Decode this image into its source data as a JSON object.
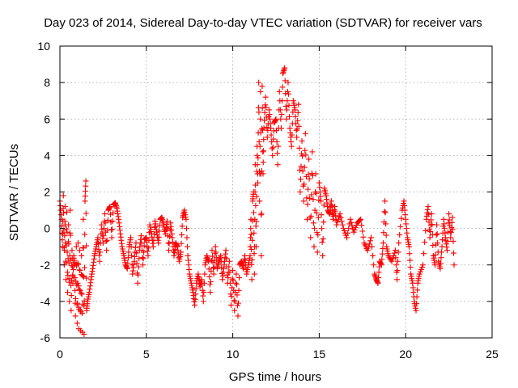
{
  "chart_data": {
    "type": "scatter",
    "title": "Day 023 of 2014, Sidereal Day-to-day VTEC variation (SDTVAR) for receiver vars",
    "xlabel": "GPS time / hours",
    "ylabel": "SDTVAR / TECUs",
    "xlim": [
      0,
      25
    ],
    "ylim": [
      -6,
      10
    ],
    "xticks": [
      0,
      5,
      10,
      15,
      20,
      25
    ],
    "yticks": [
      -6,
      -4,
      -2,
      0,
      2,
      4,
      6,
      8,
      10
    ],
    "grid": true,
    "marker": "+",
    "color": "#ff0000",
    "series": [
      {
        "name": "SDTVAR",
        "points": [
          [
            0.0,
            1.5
          ],
          [
            0.1,
            0.5
          ],
          [
            0.15,
            -1.0
          ],
          [
            0.2,
            1.8
          ],
          [
            0.25,
            -2.0
          ],
          [
            0.3,
            1.2
          ],
          [
            0.35,
            -2.8
          ],
          [
            0.4,
            0.9
          ],
          [
            0.45,
            -3.5
          ],
          [
            0.5,
            0.2
          ],
          [
            0.55,
            -4.0
          ],
          [
            0.6,
            1.0
          ],
          [
            0.65,
            -4.5
          ],
          [
            0.7,
            -1.2
          ],
          [
            0.75,
            -3.0
          ],
          [
            0.8,
            -1.5
          ],
          [
            0.85,
            -2.0
          ],
          [
            0.9,
            -4.8
          ],
          [
            0.95,
            -1.0
          ],
          [
            1.0,
            -5.2
          ],
          [
            1.05,
            -0.8
          ],
          [
            1.1,
            -5.5
          ],
          [
            1.15,
            -1.2
          ],
          [
            1.2,
            -5.6
          ],
          [
            1.25,
            -1.5
          ],
          [
            1.3,
            -5.7
          ],
          [
            1.35,
            0.5
          ],
          [
            1.4,
            -5.8
          ],
          [
            1.45,
            1.5
          ],
          [
            1.5,
            2.6
          ],
          [
            1.55,
            -4.5
          ],
          [
            1.6,
            -4.0
          ],
          [
            1.7,
            -3.5
          ],
          [
            1.8,
            -2.8
          ],
          [
            1.9,
            -2.2
          ],
          [
            2.0,
            -1.5
          ],
          [
            2.1,
            -1.0
          ],
          [
            2.2,
            -0.5
          ],
          [
            2.3,
            -1.8
          ],
          [
            2.4,
            0.2
          ],
          [
            2.5,
            -0.8
          ],
          [
            2.6,
            0.8
          ],
          [
            2.7,
            -1.2
          ],
          [
            2.8,
            1.0
          ],
          [
            2.9,
            1.2
          ],
          [
            3.0,
            -0.5
          ],
          [
            3.1,
            1.3
          ],
          [
            3.2,
            1.4
          ],
          [
            3.3,
            1.1
          ],
          [
            3.4,
            0.5
          ],
          [
            3.5,
            -0.3
          ],
          [
            3.6,
            -1.0
          ],
          [
            3.7,
            -1.5
          ],
          [
            3.8,
            -2.0
          ],
          [
            3.9,
            -2.2
          ],
          [
            4.0,
            -1.0
          ],
          [
            4.1,
            -0.5
          ],
          [
            4.2,
            -2.5
          ],
          [
            4.3,
            -1.8
          ],
          [
            4.4,
            -0.8
          ],
          [
            4.5,
            -3.0
          ],
          [
            4.6,
            -1.2
          ],
          [
            4.7,
            -0.4
          ],
          [
            4.8,
            -2.0
          ],
          [
            4.9,
            -0.6
          ],
          [
            5.0,
            -0.5
          ],
          [
            5.1,
            -1.5
          ],
          [
            5.2,
            0.2
          ],
          [
            5.3,
            -0.3
          ],
          [
            5.4,
            -1.0
          ],
          [
            5.5,
            0.4
          ],
          [
            5.6,
            -0.2
          ],
          [
            5.7,
            -0.8
          ],
          [
            5.8,
            0.5
          ],
          [
            5.9,
            0.6
          ],
          [
            6.0,
            0.2
          ],
          [
            6.1,
            -0.3
          ],
          [
            6.2,
            0.4
          ],
          [
            6.3,
            -1.2
          ],
          [
            6.4,
            0.3
          ],
          [
            6.5,
            -0.5
          ],
          [
            6.6,
            -1.5
          ],
          [
            6.7,
            -0.8
          ],
          [
            6.8,
            -1.0
          ],
          [
            6.9,
            -1.8
          ],
          [
            7.0,
            -1.3
          ],
          [
            7.1,
            0.6
          ],
          [
            7.2,
            1.0
          ],
          [
            7.3,
            0.5
          ],
          [
            7.4,
            -1.5
          ],
          [
            7.5,
            -2.5
          ],
          [
            7.6,
            -3.0
          ],
          [
            7.7,
            -3.5
          ],
          [
            7.8,
            -4.2
          ],
          [
            7.9,
            -3.0
          ],
          [
            8.0,
            -2.5
          ],
          [
            8.1,
            -3.2
          ],
          [
            8.2,
            -2.8
          ],
          [
            8.3,
            -4.0
          ],
          [
            8.4,
            -2.0
          ],
          [
            8.5,
            -1.5
          ],
          [
            8.6,
            -1.8
          ],
          [
            8.7,
            -3.5
          ],
          [
            8.8,
            -1.2
          ],
          [
            8.9,
            -2.5
          ],
          [
            9.0,
            -1.0
          ],
          [
            9.1,
            -2.2
          ],
          [
            9.2,
            -1.8
          ],
          [
            9.3,
            -1.5
          ],
          [
            9.4,
            -2.8
          ],
          [
            9.5,
            -2.0
          ],
          [
            9.6,
            -1.2
          ],
          [
            9.7,
            -3.0
          ],
          [
            9.8,
            -1.8
          ],
          [
            9.9,
            -4.2
          ],
          [
            10.0,
            -2.3
          ],
          [
            10.1,
            -4.5
          ],
          [
            10.2,
            -2.5
          ],
          [
            10.3,
            -4.8
          ],
          [
            10.4,
            -2.0
          ],
          [
            10.5,
            -1.8
          ],
          [
            10.6,
            -2.2
          ],
          [
            10.7,
            -1.5
          ],
          [
            10.8,
            -2.5
          ],
          [
            10.9,
            -2.0
          ],
          [
            11.0,
            -1.5
          ],
          [
            11.05,
            0.5
          ],
          [
            11.1,
            -2.8
          ],
          [
            11.15,
            1.5
          ],
          [
            11.2,
            2.0
          ],
          [
            11.25,
            -2.5
          ],
          [
            11.3,
            3.5
          ],
          [
            11.35,
            -1.0
          ],
          [
            11.4,
            4.5
          ],
          [
            11.45,
            2.5
          ],
          [
            11.5,
            8.0
          ],
          [
            11.55,
            1.5
          ],
          [
            11.6,
            7.5
          ],
          [
            11.65,
            -1.5
          ],
          [
            11.7,
            7.8
          ],
          [
            11.75,
            3.0
          ],
          [
            11.8,
            5.5
          ],
          [
            11.9,
            7.2
          ],
          [
            12.0,
            5.0
          ],
          [
            12.1,
            6.5
          ],
          [
            12.2,
            5.5
          ],
          [
            12.3,
            4.0
          ],
          [
            12.4,
            5.8
          ],
          [
            12.5,
            6.0
          ],
          [
            12.6,
            3.5
          ],
          [
            12.7,
            7.5
          ],
          [
            12.8,
            5.5
          ],
          [
            12.9,
            8.5
          ],
          [
            13.0,
            8.8
          ],
          [
            13.1,
            6.0
          ],
          [
            13.2,
            8.0
          ],
          [
            13.3,
            5.5
          ],
          [
            13.4,
            4.5
          ],
          [
            13.5,
            7.0
          ],
          [
            13.6,
            6.5
          ],
          [
            13.7,
            5.0
          ],
          [
            13.8,
            6.8
          ],
          [
            13.9,
            2.0
          ],
          [
            14.0,
            4.8
          ],
          [
            14.1,
            1.5
          ],
          [
            14.2,
            5.2
          ],
          [
            14.3,
            0.5
          ],
          [
            14.4,
            3.8
          ],
          [
            14.5,
            -0.5
          ],
          [
            14.6,
            4.2
          ],
          [
            14.7,
            -1.0
          ],
          [
            14.8,
            3.0
          ],
          [
            14.9,
            -1.3
          ],
          [
            15.0,
            2.5
          ],
          [
            15.1,
            1.5
          ],
          [
            15.2,
            -1.5
          ],
          [
            15.3,
            2.2
          ],
          [
            15.4,
            1.8
          ],
          [
            15.5,
            1.0
          ],
          [
            15.6,
            0.8
          ],
          [
            15.7,
            1.5
          ],
          [
            15.8,
            0.5
          ],
          [
            15.9,
            1.2
          ],
          [
            16.0,
            0.2
          ],
          [
            16.2,
            0.8
          ],
          [
            16.4,
            0.0
          ],
          [
            16.6,
            -0.5
          ],
          [
            16.8,
            0.5
          ],
          [
            17.0,
            -0.2
          ],
          [
            17.2,
            0.3
          ],
          [
            17.4,
            0.5
          ],
          [
            17.6,
            -0.8
          ],
          [
            17.8,
            -1.2
          ],
          [
            18.0,
            -0.5
          ],
          [
            18.2,
            -2.5
          ],
          [
            18.3,
            -2.8
          ],
          [
            18.4,
            -3.0
          ],
          [
            18.5,
            -1.8
          ],
          [
            18.6,
            -2.0
          ],
          [
            18.7,
            -0.8
          ],
          [
            18.8,
            1.5
          ],
          [
            18.9,
            -1.0
          ],
          [
            19.0,
            -1.5
          ],
          [
            19.2,
            -1.8
          ],
          [
            19.4,
            -1.2
          ],
          [
            19.5,
            -2.8
          ],
          [
            19.6,
            -0.8
          ],
          [
            19.8,
            1.0
          ],
          [
            19.9,
            1.5
          ],
          [
            20.0,
            0.5
          ],
          [
            20.1,
            -0.5
          ],
          [
            20.2,
            -1.0
          ],
          [
            20.3,
            -2.5
          ],
          [
            20.4,
            -3.0
          ],
          [
            20.5,
            -4.0
          ],
          [
            20.6,
            -4.5
          ],
          [
            20.7,
            -3.0
          ],
          [
            20.8,
            -2.5
          ],
          [
            21.0,
            -2.0
          ],
          [
            21.2,
            0.5
          ],
          [
            21.3,
            1.2
          ],
          [
            21.4,
            -0.5
          ],
          [
            21.5,
            0.8
          ],
          [
            21.6,
            -1.5
          ],
          [
            21.7,
            -2.0
          ],
          [
            21.8,
            0.2
          ],
          [
            21.9,
            -1.8
          ],
          [
            22.0,
            -2.2
          ],
          [
            22.1,
            -1.0
          ],
          [
            22.2,
            0.5
          ],
          [
            22.3,
            -0.5
          ],
          [
            22.4,
            -1.2
          ],
          [
            22.5,
            0.8
          ],
          [
            22.6,
            -0.5
          ],
          [
            22.7,
            0.6
          ],
          [
            22.8,
            -2.0
          ]
        ]
      }
    ]
  }
}
